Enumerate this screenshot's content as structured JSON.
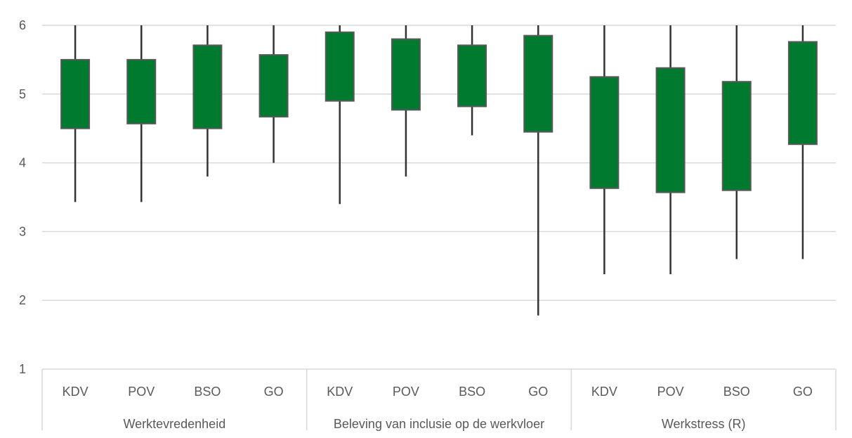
{
  "chart_data": {
    "type": "boxplot",
    "ylim": [
      1,
      6
    ],
    "yticks": [
      1,
      2,
      3,
      4,
      5,
      6
    ],
    "grid": true,
    "colors": {
      "box_fill": "#007A2E",
      "box_stroke": "#595959",
      "whisker": "#333333",
      "grid": "#D9D9D9",
      "axis": "#D9D9D9",
      "text": "#595959"
    },
    "groups": [
      {
        "label": "Werktevredenheid",
        "categories": [
          {
            "label": "KDV",
            "min": 3.43,
            "q1": 4.5,
            "q3": 5.5,
            "max": 6.0
          },
          {
            "label": "POV",
            "min": 3.43,
            "q1": 4.57,
            "q3": 5.5,
            "max": 6.0
          },
          {
            "label": "BSO",
            "min": 3.8,
            "q1": 4.5,
            "q3": 5.71,
            "max": 6.0
          },
          {
            "label": "GO",
            "min": 4.0,
            "q1": 4.67,
            "q3": 5.57,
            "max": 6.0
          }
        ]
      },
      {
        "label": "Beleving van inclusie op de werkvloer",
        "categories": [
          {
            "label": "KDV",
            "min": 3.4,
            "q1": 4.9,
            "q3": 5.9,
            "max": 6.0
          },
          {
            "label": "POV",
            "min": 3.8,
            "q1": 4.77,
            "q3": 5.8,
            "max": 6.0
          },
          {
            "label": "BSO",
            "min": 4.4,
            "q1": 4.82,
            "q3": 5.71,
            "max": 6.0
          },
          {
            "label": "GO",
            "min": 1.78,
            "q1": 4.45,
            "q3": 5.85,
            "max": 6.0
          }
        ]
      },
      {
        "label": "Werkstress (R)",
        "categories": [
          {
            "label": "KDV",
            "min": 2.38,
            "q1": 3.63,
            "q3": 5.25,
            "max": 6.0
          },
          {
            "label": "POV",
            "min": 2.38,
            "q1": 3.57,
            "q3": 5.38,
            "max": 6.0
          },
          {
            "label": "BSO",
            "min": 2.6,
            "q1": 3.6,
            "q3": 5.18,
            "max": 6.0
          },
          {
            "label": "GO",
            "min": 2.6,
            "q1": 4.27,
            "q3": 5.76,
            "max": 6.0
          }
        ]
      }
    ]
  }
}
